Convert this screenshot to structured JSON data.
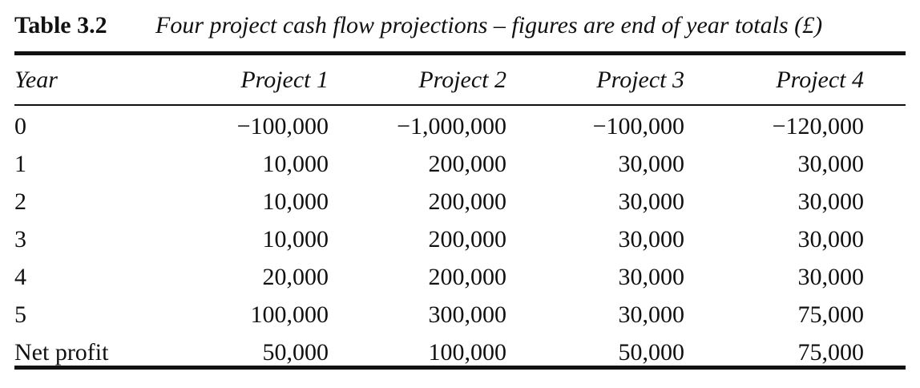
{
  "caption": {
    "label": "Table 3.2",
    "text": "Four project cash flow projections – figures are end of year totals (£)"
  },
  "table": {
    "headers": [
      "Year",
      "Project 1",
      "Project 2",
      "Project 3",
      "Project 4"
    ],
    "rows": [
      [
        "0",
        "−100,000",
        "−1,000,000",
        "−100,000",
        "−120,000"
      ],
      [
        "1",
        "10,000",
        "200,000",
        "30,000",
        "30,000"
      ],
      [
        "2",
        "10,000",
        "200,000",
        "30,000",
        "30,000"
      ],
      [
        "3",
        "10,000",
        "200,000",
        "30,000",
        "30,000"
      ],
      [
        "4",
        "20,000",
        "200,000",
        "30,000",
        "30,000"
      ],
      [
        "5",
        "100,000",
        "300,000",
        "30,000",
        "75,000"
      ],
      [
        "Net profit",
        "50,000",
        "100,000",
        "50,000",
        "75,000"
      ]
    ]
  }
}
